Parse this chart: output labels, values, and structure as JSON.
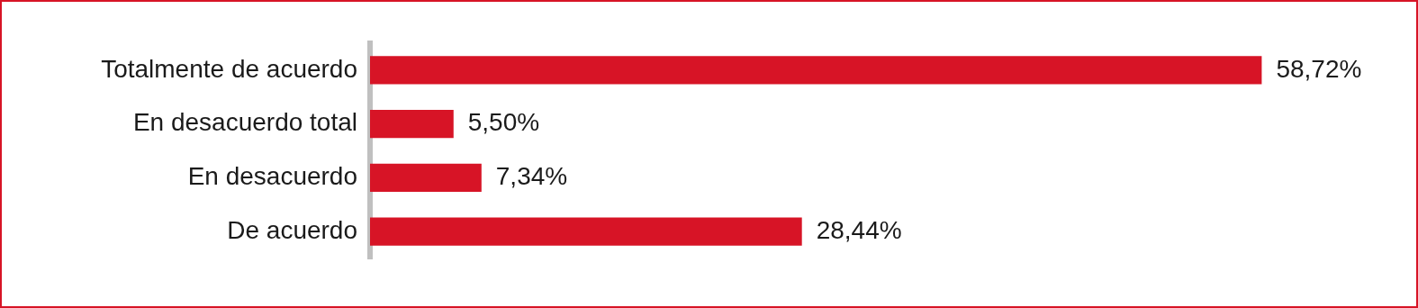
{
  "chart_data": {
    "type": "bar",
    "orientation": "horizontal",
    "categories": [
      "Totalmente de acuerdo",
      "En desacuerdo total",
      "En desacuerdo",
      "De acuerdo"
    ],
    "values": [
      58.72,
      5.5,
      7.34,
      28.44
    ],
    "value_labels": [
      "58,72%",
      "5,50%",
      "7,34%",
      "28,44%"
    ],
    "color": "#d71426",
    "legend": false,
    "tick_labels": "y"
  }
}
